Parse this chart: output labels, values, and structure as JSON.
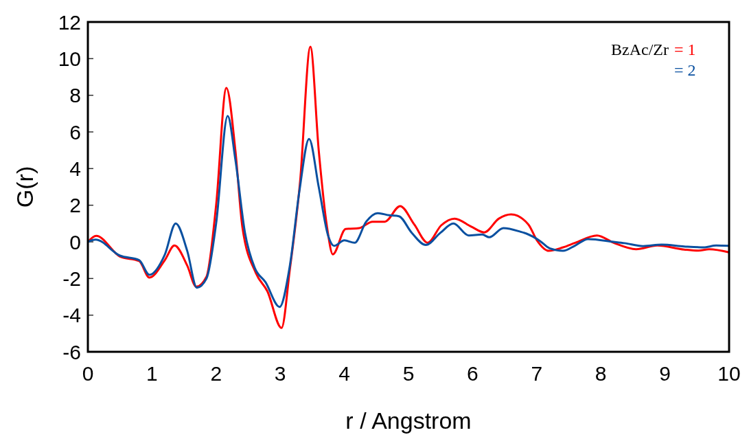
{
  "chart_data": {
    "type": "line",
    "xlabel": "r / Angstrom",
    "ylabel": "G(r)",
    "legend_title": "BzAc/Zr",
    "legend": "top right",
    "grid": false,
    "xlim": [
      0,
      10
    ],
    "ylim": [
      -6,
      12
    ],
    "xticks": [
      0,
      1,
      2,
      3,
      4,
      5,
      6,
      7,
      8,
      9,
      10
    ],
    "yticks": [
      -6,
      -4,
      -2,
      0,
      2,
      4,
      6,
      8,
      10,
      12
    ],
    "series": [
      {
        "name": "= 1",
        "color": "#ff0000",
        "x": [
          0,
          0.13,
          0.5,
          0.8,
          0.96,
          1.2,
          1.35,
          1.55,
          1.69,
          1.85,
          2.0,
          2.16,
          2.3,
          2.41,
          2.62,
          2.8,
          3.02,
          3.15,
          3.31,
          3.47,
          3.6,
          3.73,
          3.82,
          4.02,
          4.23,
          4.44,
          4.63,
          4.87,
          5.09,
          5.3,
          5.51,
          5.72,
          5.98,
          6.18,
          6.41,
          6.6,
          6.87,
          7.0,
          7.19,
          7.41,
          7.6,
          7.94,
          8.2,
          8.55,
          8.88,
          9.3,
          9.52,
          9.69,
          10
        ],
        "values": [
          0,
          0.33,
          -0.8,
          -1.05,
          -1.95,
          -1.0,
          -0.2,
          -1.3,
          -2.45,
          -1.9,
          2.0,
          8.4,
          5.0,
          0.8,
          -1.7,
          -2.7,
          -4.7,
          -1.5,
          3.3,
          10.65,
          5.0,
          0.8,
          -0.68,
          0.7,
          0.75,
          1.1,
          1.1,
          1.95,
          0.95,
          -0.05,
          0.9,
          1.27,
          0.83,
          0.52,
          1.27,
          1.5,
          0.95,
          0.1,
          -0.49,
          -0.3,
          -0.05,
          0.35,
          -0.05,
          -0.4,
          -0.2,
          -0.42,
          -0.48,
          -0.4,
          -0.57
        ]
      },
      {
        "name": "= 2",
        "color": "#0a50a0",
        "x": [
          0,
          0.12,
          0.5,
          0.8,
          0.96,
          1.2,
          1.37,
          1.55,
          1.7,
          1.85,
          2.0,
          2.18,
          2.3,
          2.45,
          2.6,
          2.77,
          2.99,
          3.15,
          3.3,
          3.45,
          3.6,
          3.75,
          3.84,
          4.0,
          4.16,
          4.34,
          4.52,
          4.7,
          4.85,
          5.05,
          5.27,
          5.5,
          5.7,
          5.94,
          6.15,
          6.26,
          6.48,
          6.75,
          6.84,
          7.05,
          7.2,
          7.41,
          7.6,
          7.8,
          8.2,
          8.37,
          8.66,
          8.95,
          9.3,
          9.6,
          9.8,
          10
        ],
        "values": [
          0,
          0.12,
          -0.75,
          -1.0,
          -1.8,
          -0.7,
          1.0,
          -0.5,
          -2.5,
          -2.0,
          1.0,
          6.87,
          4.5,
          0.5,
          -1.4,
          -2.2,
          -3.55,
          -1.3,
          2.8,
          5.62,
          3.0,
          0.3,
          -0.22,
          0.08,
          -0.05,
          1.1,
          1.57,
          1.45,
          1.4,
          0.5,
          -0.17,
          0.5,
          1.0,
          0.35,
          0.4,
          0.25,
          0.75,
          0.55,
          0.45,
          0.05,
          -0.35,
          -0.49,
          -0.2,
          0.15,
          0.0,
          -0.07,
          -0.23,
          -0.15,
          -0.25,
          -0.3,
          -0.2,
          -0.22
        ]
      }
    ]
  }
}
